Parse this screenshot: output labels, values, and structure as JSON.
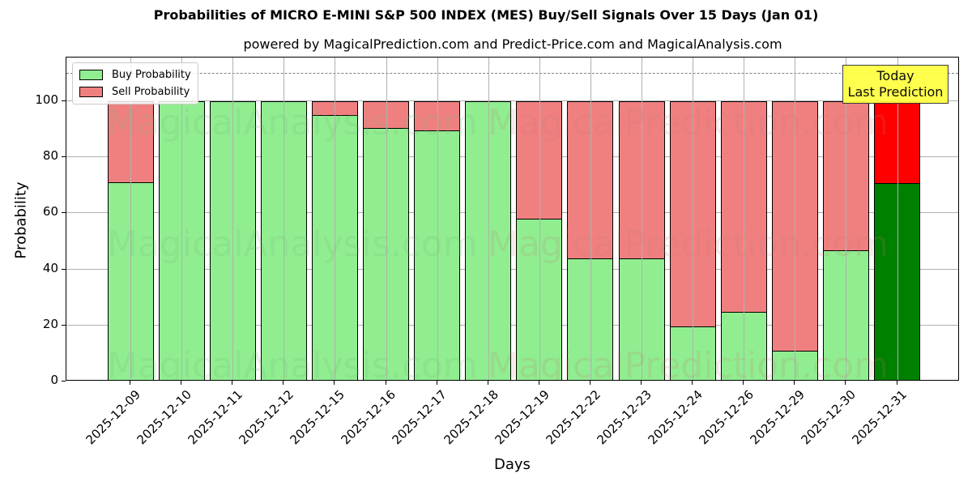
{
  "chart_data": {
    "type": "bar",
    "stacked": true,
    "title": "Probabilities of MICRO E-MINI S&P 500 INDEX (MES) Buy/Sell Signals Over 15 Days (Jan 01)",
    "subtitle": "powered by MagicalPrediction.com and Predict-Price.com and MagicalAnalysis.com",
    "xlabel": "Days",
    "ylabel": "Probability",
    "ylim": [
      0,
      115
    ],
    "yticks": [
      0,
      20,
      40,
      60,
      80,
      100
    ],
    "grid": true,
    "reference_line": {
      "y": 110,
      "style": "dashed",
      "color": "#808080"
    },
    "legend_position": "upper left",
    "categories": [
      "2025-12-09",
      "2025-12-10",
      "2025-12-11",
      "2025-12-12",
      "2025-12-15",
      "2025-12-16",
      "2025-12-17",
      "2025-12-18",
      "2025-12-19",
      "2025-12-22",
      "2025-12-23",
      "2025-12-24",
      "2025-12-26",
      "2025-12-29",
      "2025-12-30",
      "2025-12-31"
    ],
    "series": [
      {
        "name": "Buy Probability",
        "color": "#90ee90",
        "values": [
          71.1,
          100,
          100,
          100,
          95.3,
          90.7,
          89.6,
          100,
          58.2,
          44.2,
          44.2,
          19.8,
          25.0,
          11.1,
          47.0,
          71.0
        ]
      },
      {
        "name": "Sell Probability",
        "color": "#f08080",
        "values": [
          28.9,
          0,
          0,
          0,
          4.7,
          9.3,
          10.4,
          0,
          41.8,
          55.8,
          55.8,
          80.2,
          75.0,
          88.9,
          53.0,
          29.0
        ]
      }
    ],
    "highlight": {
      "index": 15,
      "buy_color": "#008000",
      "sell_color": "#ff0000",
      "annotation": "Today\nLast Prediction",
      "annotation_bg": "#ffff44"
    }
  },
  "legend": {
    "buy": "Buy Probability",
    "sell": "Sell Probability"
  },
  "annotation": {
    "line1": "Today",
    "line2": "Last Prediction"
  },
  "watermarks": [
    "MagicalAnalysis.com",
    "MagicalPrediction.com"
  ]
}
